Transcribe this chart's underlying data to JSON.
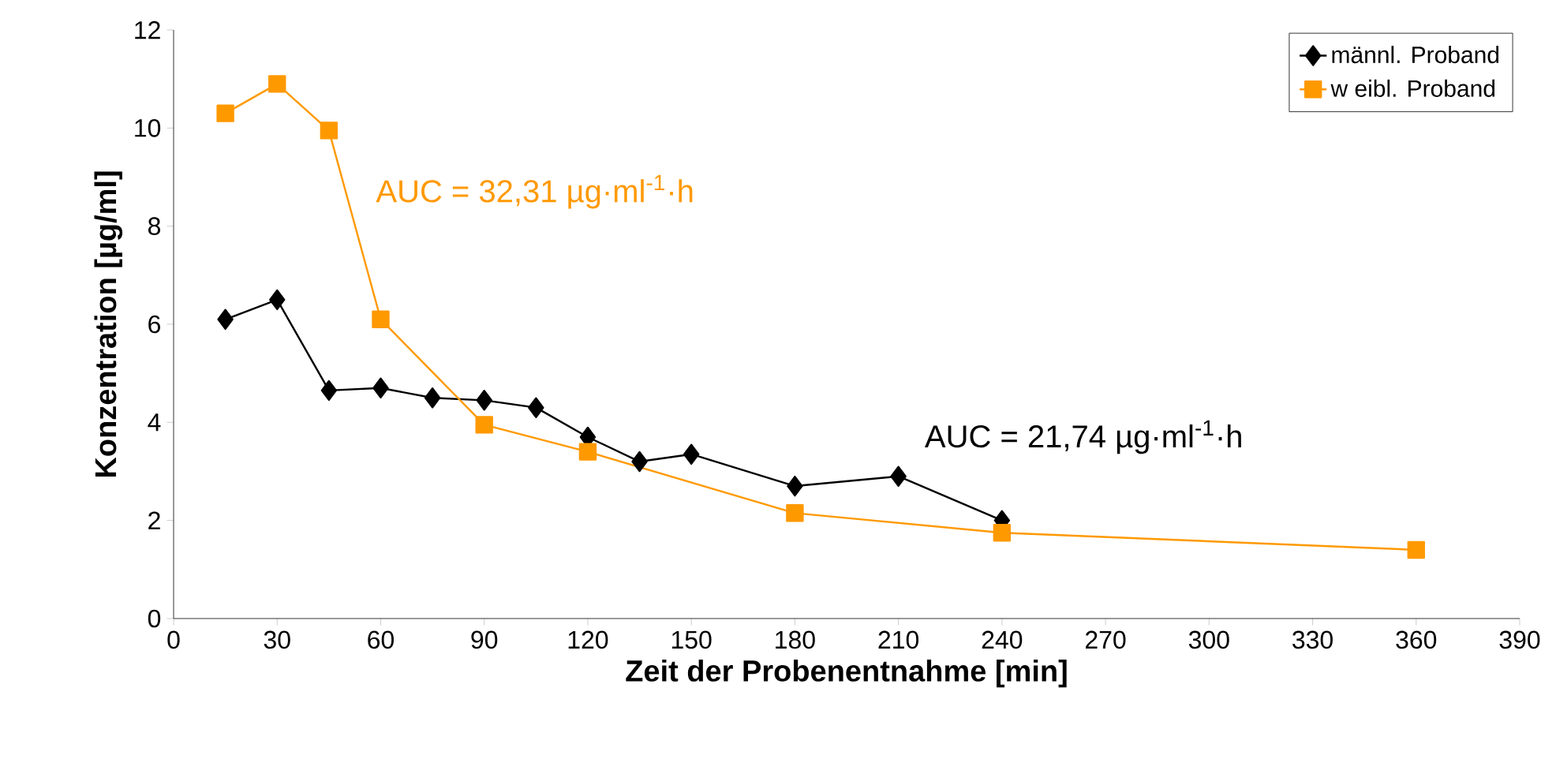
{
  "chart_data": {
    "type": "line",
    "xlabel": "Zeit der Probenentnahme [min]",
    "ylabel": "Konzentration [µg/ml]",
    "xlim": [
      0,
      390
    ],
    "xticks": [
      0,
      30,
      60,
      90,
      120,
      150,
      180,
      210,
      240,
      270,
      300,
      330,
      360,
      390
    ],
    "ylim": [
      0,
      12
    ],
    "yticks": [
      0,
      2,
      4,
      6,
      8,
      10,
      12
    ],
    "series": [
      {
        "name": "männl. Proband",
        "color": "#000000",
        "marker": "diamond",
        "x": [
          15,
          30,
          45,
          60,
          75,
          90,
          105,
          120,
          135,
          150,
          180,
          210,
          240
        ],
        "values": [
          6.1,
          6.5,
          4.65,
          4.7,
          4.5,
          4.45,
          4.3,
          3.7,
          3.2,
          3.35,
          2.7,
          2.9,
          2.0
        ]
      },
      {
        "name": "w eibl. Proband",
        "color": "#ff9900",
        "marker": "square",
        "x": [
          15,
          30,
          45,
          60,
          90,
          120,
          180,
          240,
          360
        ],
        "values": [
          10.3,
          10.9,
          9.95,
          6.1,
          3.95,
          3.4,
          2.15,
          1.75,
          1.4
        ]
      }
    ],
    "annotations": [
      "AUC = 21,74 µg·ml$^{-1}$·h",
      "AUC = 32,31 µg·ml$^{-1}$·h"
    ],
    "legend": "top right",
    "grid": false
  }
}
